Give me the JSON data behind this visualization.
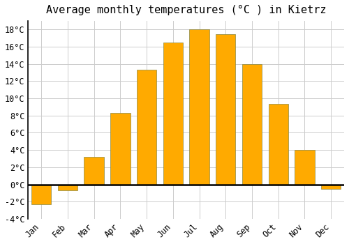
{
  "title": "Average monthly temperatures (°C ) in Kietrz",
  "months": [
    "Jan",
    "Feb",
    "Mar",
    "Apr",
    "May",
    "Jun",
    "Jul",
    "Aug",
    "Sep",
    "Oct",
    "Nov",
    "Dec"
  ],
  "values": [
    -2.3,
    -0.7,
    3.2,
    8.3,
    13.3,
    16.5,
    18.0,
    17.5,
    14.0,
    9.4,
    4.0,
    -0.5
  ],
  "bar_color": "#FFAA00",
  "bar_edge_color": "#888844",
  "ylim": [
    -4,
    19
  ],
  "yticks": [
    -4,
    -2,
    0,
    2,
    4,
    6,
    8,
    10,
    12,
    14,
    16,
    18
  ],
  "background_color": "#FFFFFF",
  "plot_bg_color": "#FFFFFF",
  "grid_color": "#CCCCCC",
  "title_fontsize": 11,
  "tick_fontsize": 8.5,
  "bar_width": 0.75
}
